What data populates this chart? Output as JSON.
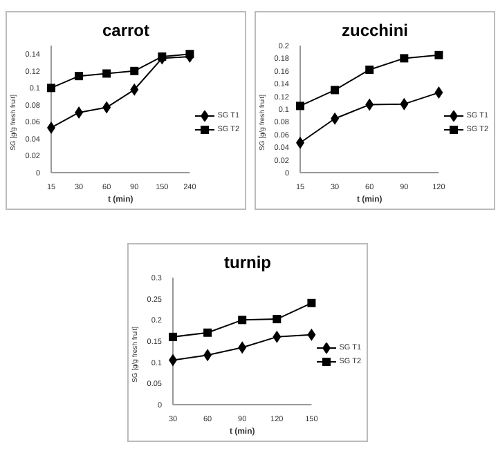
{
  "chart_data": [
    {
      "type": "line",
      "title": "carrot",
      "xlabel": "t (min)",
      "ylabel": "SG [g/g fresh fruit]",
      "categories": [
        "15",
        "30",
        "60",
        "90",
        "150",
        "240"
      ],
      "ylim": [
        0,
        0.15
      ],
      "yticks": [
        {
          "value": 0,
          "label": "0"
        },
        {
          "value": 0.02,
          "label": "0.02"
        },
        {
          "value": 0.04,
          "label": "0.04"
        },
        {
          "value": 0.06,
          "label": "0.06"
        },
        {
          "value": 0.08,
          "label": "0.08"
        },
        {
          "value": 0.1,
          "label": "0.1"
        },
        {
          "value": 0.12,
          "label": "0.12"
        },
        {
          "value": 0.14,
          "label": "0.14"
        }
      ],
      "grid": false,
      "legend": "right",
      "series": [
        {
          "name": "SG T1",
          "color": "#000000",
          "marker": "diamond",
          "values": [
            0.053,
            0.071,
            0.077,
            0.098,
            0.135,
            0.137
          ]
        },
        {
          "name": "SG T2",
          "color": "#000000",
          "marker": "square",
          "values": [
            0.1,
            0.114,
            0.117,
            0.12,
            0.137,
            0.14
          ]
        }
      ]
    },
    {
      "type": "line",
      "title": "zucchini",
      "xlabel": "t (min)",
      "ylabel": "SG [g/g fresh fruit]",
      "categories": [
        "15",
        "30",
        "60",
        "90",
        "120"
      ],
      "ylim": [
        0,
        0.2
      ],
      "yticks": [
        {
          "value": 0,
          "label": "0"
        },
        {
          "value": 0.02,
          "label": "0.02"
        },
        {
          "value": 0.04,
          "label": "0.04"
        },
        {
          "value": 0.06,
          "label": "0.06"
        },
        {
          "value": 0.08,
          "label": "0.08"
        },
        {
          "value": 0.1,
          "label": "0.1"
        },
        {
          "value": 0.12,
          "label": "0.12"
        },
        {
          "value": 0.14,
          "label": "0.14"
        },
        {
          "value": 0.16,
          "label": "0.16"
        },
        {
          "value": 0.18,
          "label": "0.18"
        },
        {
          "value": 0.2,
          "label": "0.2"
        }
      ],
      "grid": false,
      "legend": "right",
      "series": [
        {
          "name": "SG T1",
          "color": "#000000",
          "marker": "diamond",
          "values": [
            0.047,
            0.085,
            0.107,
            0.108,
            0.126
          ]
        },
        {
          "name": "SG T2",
          "color": "#000000",
          "marker": "square",
          "values": [
            0.105,
            0.13,
            0.162,
            0.18,
            0.185
          ]
        }
      ]
    },
    {
      "type": "line",
      "title": "turnip",
      "xlabel": "t (min)",
      "ylabel": "SG [g/g fresh fruit]",
      "categories": [
        "30",
        "60",
        "90",
        "120",
        "150"
      ],
      "ylim": [
        0,
        0.3
      ],
      "yticks": [
        {
          "value": 0,
          "label": "0"
        },
        {
          "value": 0.05,
          "label": "0.05"
        },
        {
          "value": 0.1,
          "label": "0.1"
        },
        {
          "value": 0.15,
          "label": "0.15"
        },
        {
          "value": 0.2,
          "label": "0.2"
        },
        {
          "value": 0.25,
          "label": "0.25"
        },
        {
          "value": 0.3,
          "label": "0.3"
        }
      ],
      "grid": false,
      "legend": "right",
      "series": [
        {
          "name": "SG T1",
          "color": "#000000",
          "marker": "diamond",
          "values": [
            0.105,
            0.117,
            0.135,
            0.16,
            0.165
          ]
        },
        {
          "name": "SG T2",
          "color": "#000000",
          "marker": "square",
          "values": [
            0.16,
            0.17,
            0.2,
            0.202,
            0.24
          ]
        }
      ]
    }
  ]
}
